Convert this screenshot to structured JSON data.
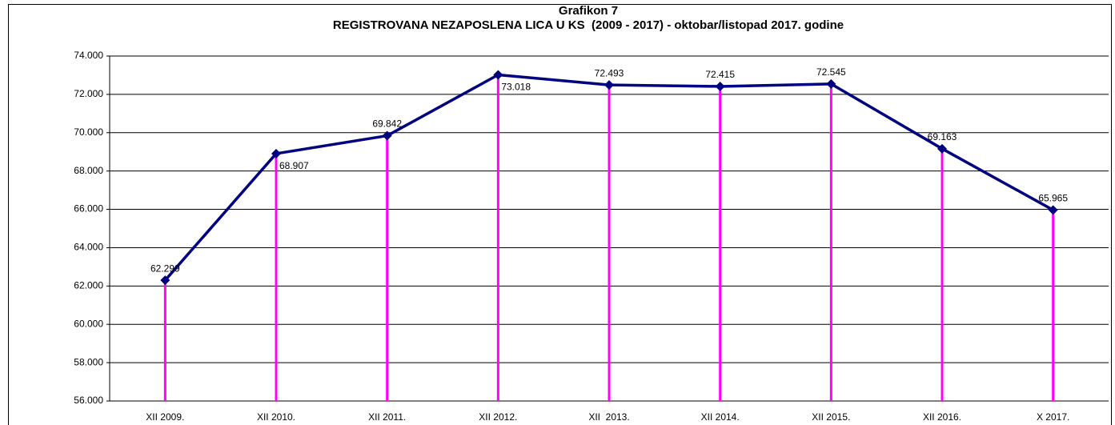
{
  "chart_data": {
    "type": "line",
    "title": "Grafikon 7",
    "subtitle": "REGISTROVANA NEZAPOSLENA LICA U KS  (2009 - 2017) - oktobar/listopad 2017. godine",
    "categories": [
      "XII 2009.",
      "XII 2010.",
      "XII 2011.",
      "XII 2012.",
      "XII  2013.",
      "XII 2014.",
      "XII 2015.",
      "XII 2016.",
      "X 2017."
    ],
    "series": [
      {
        "name": "Registrovana nezaposlena lica",
        "color": "#000080",
        "drop_color": "#ff00ff",
        "values": [
          62299,
          68907,
          69842,
          73018,
          72493,
          72415,
          72545,
          69163,
          65965
        ],
        "value_labels": [
          "62.299",
          "68.907",
          "69.842",
          "73.018",
          "72.493",
          "72.415",
          "72.545",
          "69.163",
          "65.965"
        ]
      }
    ],
    "ylim": [
      56000,
      74000
    ],
    "yticks": [
      {
        "value": 56000,
        "label": "56.000"
      },
      {
        "value": 58000,
        "label": "58.000"
      },
      {
        "value": 60000,
        "label": "60.000"
      },
      {
        "value": 62000,
        "label": "62.000"
      },
      {
        "value": 64000,
        "label": "64.000"
      },
      {
        "value": 66000,
        "label": "66.000"
      },
      {
        "value": 68000,
        "label": "68.000"
      },
      {
        "value": 70000,
        "label": "70.000"
      },
      {
        "value": 72000,
        "label": "72.000"
      },
      {
        "value": 74000,
        "label": "74.000"
      }
    ],
    "grid": true
  }
}
